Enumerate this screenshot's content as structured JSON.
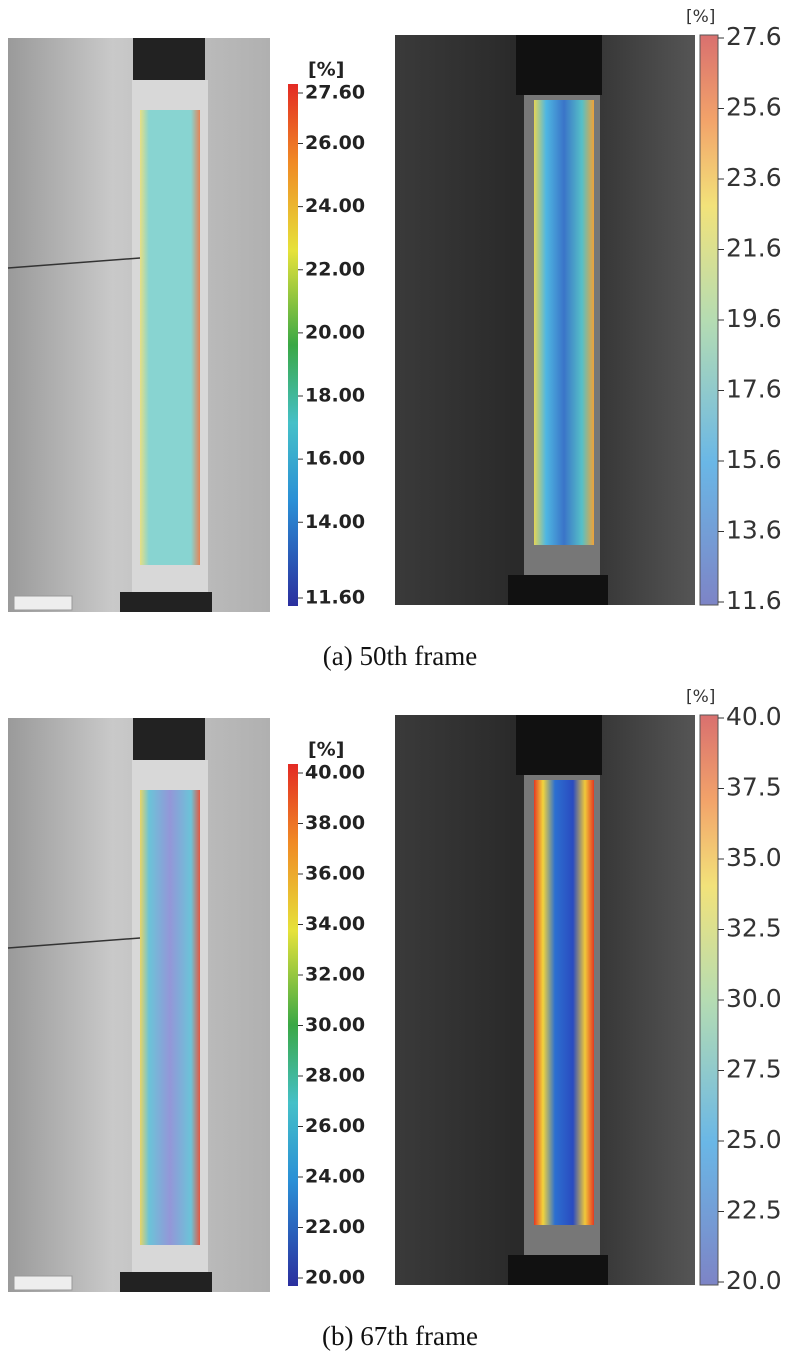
{
  "panels": [
    {
      "caption": "(a) 50th frame",
      "left_colorbar": {
        "unit": "[%]",
        "ticks": [
          "27.60",
          "26.00",
          "24.00",
          "22.00",
          "20.00",
          "18.00",
          "16.00",
          "14.00",
          "11.60"
        ]
      },
      "right_colorbar": {
        "unit": "[%]",
        "ticks": [
          "27.6",
          "25.6",
          "23.6",
          "21.6",
          "19.6",
          "17.6",
          "15.6",
          "13.6",
          "11.6"
        ]
      }
    },
    {
      "caption": "(b) 67th frame",
      "left_colorbar": {
        "unit": "[%]",
        "ticks": [
          "40.00",
          "38.00",
          "36.00",
          "34.00",
          "32.00",
          "30.00",
          "28.00",
          "26.00",
          "24.00",
          "22.00",
          "20.00"
        ]
      },
      "right_colorbar": {
        "unit": "[%]",
        "ticks": [
          "40.0",
          "37.5",
          "35.0",
          "32.5",
          "30.0",
          "27.5",
          "25.0",
          "22.5",
          "20.0"
        ]
      }
    }
  ]
}
